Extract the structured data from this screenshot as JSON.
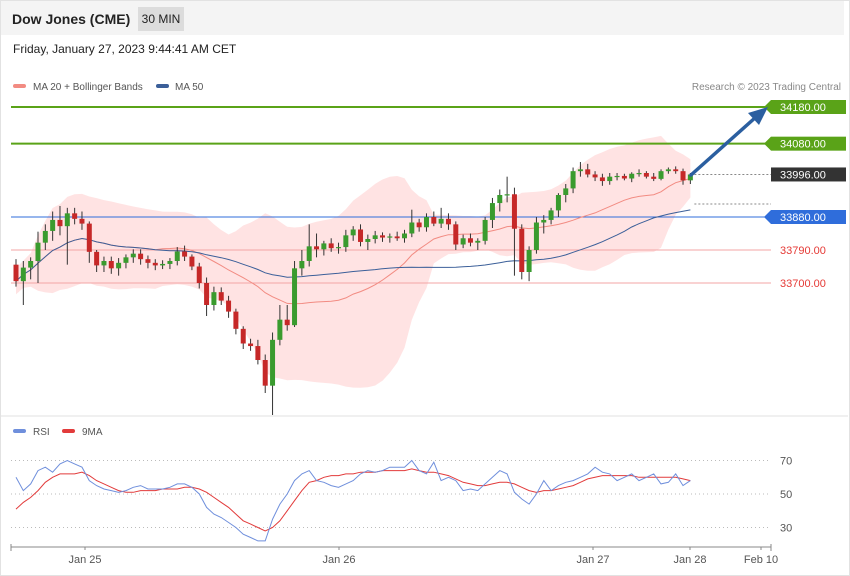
{
  "header": {
    "title": "Dow Jones (CME)",
    "timeframe": "30 MIN",
    "datetime": "Friday, January 27, 2023 9:44:41 AM CET"
  },
  "legend": {
    "bollinger": "MA 20 + Bollinger Bands",
    "ma50": "MA 50",
    "copyright": "Research © 2023 Trading Central"
  },
  "rsi_legend": {
    "rsi": "RSI",
    "ma9": "9MA"
  },
  "colors": {
    "resistance": "#5aa318",
    "current": "#333333",
    "pivot": "#2f6ddb",
    "support": "#e53935",
    "bull": "#3a9b2e",
    "bear": "#c62828",
    "ma50": "#3b5f99",
    "band": "#ffdede",
    "arrow": "#2b5fa0",
    "rsi": "#6f8fdc",
    "rsi_ma": "#e23b3b"
  },
  "levels": [
    {
      "value": 34180.0,
      "label": "34180.00",
      "kind": "resistance"
    },
    {
      "value": 34080.0,
      "label": "34080.00",
      "kind": "resistance"
    },
    {
      "value": 33996.0,
      "label": "33996.00",
      "kind": "current"
    },
    {
      "value": 33880.0,
      "label": "33880.00",
      "kind": "pivot"
    },
    {
      "value": 33790.0,
      "label": "33790.00",
      "kind": "support"
    },
    {
      "value": 33700.0,
      "label": "33700.00",
      "kind": "support"
    }
  ],
  "chart_data": {
    "type": "candlestick",
    "x_ticks": [
      "Jan 25",
      "Jan 26",
      "Jan 27",
      "Jan 28",
      "Feb 10"
    ],
    "ylim": [
      33340,
      34210
    ],
    "candles": [
      [
        33750,
        33765,
        33690,
        33705
      ],
      [
        33705,
        33760,
        33640,
        33742
      ],
      [
        33742,
        33770,
        33710,
        33760
      ],
      [
        33760,
        33840,
        33700,
        33810
      ],
      [
        33810,
        33860,
        33790,
        33842
      ],
      [
        33842,
        33895,
        33815,
        33872
      ],
      [
        33872,
        33910,
        33830,
        33855
      ],
      [
        33855,
        33905,
        33750,
        33890
      ],
      [
        33890,
        33905,
        33860,
        33875
      ],
      [
        33875,
        33895,
        33845,
        33862
      ],
      [
        33862,
        33868,
        33755,
        33785
      ],
      [
        33785,
        33790,
        33730,
        33748
      ],
      [
        33748,
        33772,
        33730,
        33760
      ],
      [
        33760,
        33772,
        33725,
        33740
      ],
      [
        33740,
        33768,
        33720,
        33755
      ],
      [
        33755,
        33778,
        33740,
        33770
      ],
      [
        33770,
        33792,
        33755,
        33780
      ],
      [
        33780,
        33792,
        33750,
        33765
      ],
      [
        33765,
        33775,
        33740,
        33755
      ],
      [
        33755,
        33765,
        33735,
        33748
      ],
      [
        33748,
        33762,
        33738,
        33752
      ],
      [
        33752,
        33768,
        33738,
        33760
      ],
      [
        33760,
        33798,
        33748,
        33786
      ],
      [
        33786,
        33802,
        33760,
        33772
      ],
      [
        33772,
        33778,
        33735,
        33745
      ],
      [
        33745,
        33755,
        33685,
        33700
      ],
      [
        33700,
        33715,
        33610,
        33640
      ],
      [
        33640,
        33690,
        33625,
        33675
      ],
      [
        33675,
        33688,
        33640,
        33652
      ],
      [
        33652,
        33665,
        33605,
        33622
      ],
      [
        33622,
        33630,
        33560,
        33575
      ],
      [
        33575,
        33582,
        33520,
        33535
      ],
      [
        33535,
        33548,
        33515,
        33528
      ],
      [
        33528,
        33545,
        33478,
        33490
      ],
      [
        33490,
        33505,
        33400,
        33420
      ],
      [
        33420,
        33565,
        33340,
        33545
      ],
      [
        33545,
        33640,
        33530,
        33600
      ],
      [
        33600,
        33640,
        33570,
        33585
      ],
      [
        33585,
        33760,
        33580,
        33740
      ],
      [
        33740,
        33790,
        33720,
        33760
      ],
      [
        33760,
        33860,
        33745,
        33800
      ],
      [
        33800,
        33835,
        33770,
        33792
      ],
      [
        33792,
        33815,
        33775,
        33808
      ],
      [
        33808,
        33822,
        33785,
        33795
      ],
      [
        33795,
        33810,
        33780,
        33798
      ],
      [
        33798,
        33845,
        33785,
        33830
      ],
      [
        33830,
        33855,
        33815,
        33846
      ],
      [
        33846,
        33860,
        33800,
        33812
      ],
      [
        33812,
        33832,
        33790,
        33820
      ],
      [
        33820,
        33842,
        33808,
        33830
      ],
      [
        33830,
        33838,
        33812,
        33824
      ],
      [
        33824,
        33835,
        33810,
        33827
      ],
      [
        33827,
        33840,
        33815,
        33822
      ],
      [
        33822,
        33845,
        33810,
        33835
      ],
      [
        33835,
        33900,
        33825,
        33865
      ],
      [
        33865,
        33875,
        33840,
        33852
      ],
      [
        33852,
        33890,
        33840,
        33880
      ],
      [
        33880,
        33895,
        33855,
        33862
      ],
      [
        33862,
        33905,
        33850,
        33875
      ],
      [
        33875,
        33890,
        33845,
        33860
      ],
      [
        33860,
        33868,
        33790,
        33805
      ],
      [
        33805,
        33832,
        33795,
        33822
      ],
      [
        33822,
        33835,
        33800,
        33810
      ],
      [
        33810,
        33822,
        33790,
        33815
      ],
      [
        33815,
        33880,
        33805,
        33872
      ],
      [
        33872,
        33932,
        33850,
        33918
      ],
      [
        33918,
        33955,
        33895,
        33940
      ],
      [
        33940,
        33990,
        33920,
        33942
      ],
      [
        33942,
        33960,
        33720,
        33848
      ],
      [
        33848,
        33860,
        33710,
        33730
      ],
      [
        33730,
        33800,
        33705,
        33790
      ],
      [
        33790,
        33880,
        33780,
        33865
      ],
      [
        33865,
        33885,
        33835,
        33872
      ],
      [
        33872,
        33905,
        33860,
        33898
      ],
      [
        33898,
        33945,
        33880,
        33940
      ],
      [
        33940,
        33970,
        33920,
        33958
      ],
      [
        33958,
        34015,
        33945,
        34005
      ],
      [
        34005,
        34030,
        33990,
        34010
      ],
      [
        34010,
        34025,
        33988,
        33996
      ],
      [
        33996,
        34005,
        33978,
        33988
      ],
      [
        33988,
        33998,
        33965,
        33978
      ],
      [
        33978,
        34000,
        33968,
        33990
      ],
      [
        33990,
        34000,
        33980,
        33992
      ],
      [
        33992,
        33998,
        33980,
        33985
      ],
      [
        33985,
        34002,
        33975,
        33998
      ],
      [
        33998,
        34010,
        33990,
        34000
      ],
      [
        34000,
        34005,
        33985,
        33990
      ],
      [
        33990,
        34000,
        33978,
        33984
      ],
      [
        33984,
        34010,
        33980,
        34005
      ],
      [
        34005,
        34015,
        33998,
        34010
      ],
      [
        34010,
        34018,
        33998,
        34005
      ],
      [
        34005,
        34012,
        33968,
        33980
      ],
      [
        33980,
        34000,
        33970,
        33996
      ]
    ],
    "rsi_levels": [
      70,
      50,
      30
    ],
    "rsi": [
      60,
      52,
      56,
      64,
      66,
      63,
      68,
      70,
      68,
      66,
      58,
      55,
      53,
      52,
      51,
      52,
      54,
      55,
      53,
      53,
      53,
      54,
      56,
      56,
      54,
      50,
      42,
      38,
      36,
      33,
      30,
      26,
      24,
      22,
      22,
      35,
      44,
      50,
      58,
      62,
      64,
      58,
      57,
      55,
      54,
      56,
      58,
      62,
      64,
      63,
      64,
      66,
      66,
      66,
      70,
      64,
      62,
      69,
      58,
      60,
      58,
      52,
      53,
      52,
      56,
      60,
      64,
      62,
      51,
      47,
      44,
      50,
      58,
      52,
      55,
      57,
      58,
      60,
      62,
      66,
      63,
      62,
      58,
      60,
      62,
      58,
      60,
      62,
      56,
      57,
      62,
      55,
      58
    ],
    "rsi_ma": [
      41,
      45,
      48,
      52,
      57,
      60,
      62,
      62,
      62,
      63,
      61,
      58,
      56,
      54,
      52,
      51,
      51,
      52,
      52,
      52,
      53,
      53,
      53,
      54,
      54,
      53,
      51,
      48,
      45,
      42,
      38,
      34,
      32,
      30,
      28,
      30,
      34,
      40,
      46,
      52,
      57,
      58,
      60,
      61,
      61,
      62,
      62,
      63,
      63,
      63,
      64,
      64,
      64,
      64,
      65,
      64,
      63,
      63,
      62,
      61,
      59,
      57,
      56,
      55,
      55,
      56,
      57,
      57,
      56,
      54,
      52,
      51,
      52,
      52,
      53,
      54,
      55,
      57,
      59,
      60,
      61,
      61,
      61,
      61,
      61,
      60,
      60,
      60,
      60,
      60,
      60,
      59,
      58
    ]
  }
}
